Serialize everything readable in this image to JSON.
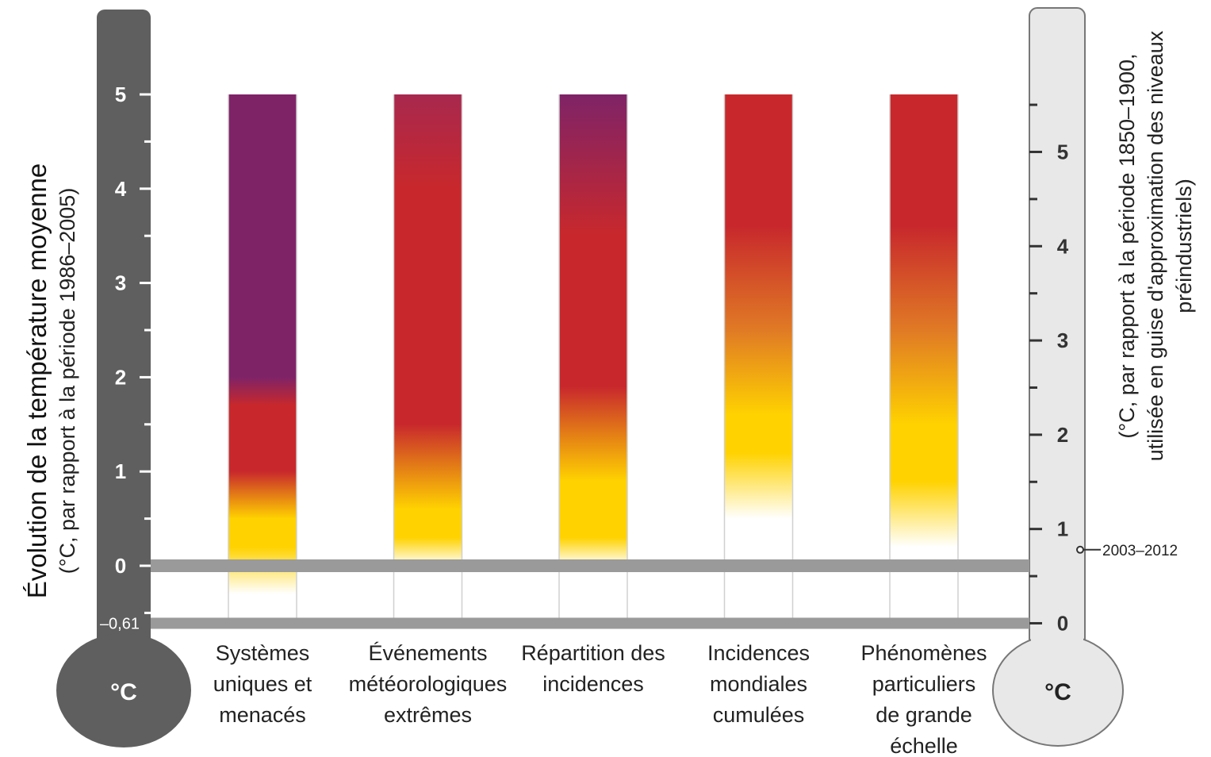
{
  "chart_data": {
    "type": "bar",
    "categories": [
      [
        "Systèmes",
        "uniques et",
        "menacés"
      ],
      [
        "Événements",
        "météorologiques",
        "extrêmes"
      ],
      [
        "Répartition des",
        "incidences"
      ],
      [
        "Incidences",
        "mondiales",
        "cumulées"
      ],
      [
        "Phénomènes",
        "particuliers",
        "de grande",
        "échelle"
      ]
    ],
    "left_axis": {
      "title": "Évolution de la température moyenne",
      "subtitle": "(°C, par rapport à la période 1986–2005)",
      "ticks": [
        "0",
        "1",
        "2",
        "3",
        "4",
        "5"
      ],
      "ylim": [
        -0.61,
        5
      ],
      "baseline_label": "–0,61",
      "unit": "°C"
    },
    "right_axis": {
      "title_lines": [
        "(°C, par rapport à la période 1850–1900,",
        "utilisée en guise d'approximation des niveaux",
        "préindustriels)"
      ],
      "ticks": [
        "0",
        "1",
        "2",
        "3",
        "4",
        "5"
      ],
      "offset": 0.61,
      "unit": "°C",
      "marker_label": "2003–2012",
      "marker_value": 0.78
    },
    "risk_colors": {
      "undetectable": "#ffffff",
      "moderate": "#ffd200",
      "high": "#c8282c",
      "very_high": "#7f2367"
    },
    "bars": [
      {
        "stops": [
          [
            -0.3,
            "#ffffff"
          ],
          [
            0.2,
            "#ffd200"
          ],
          [
            0.5,
            "#ffd200"
          ],
          [
            1.0,
            "#c8282c"
          ],
          [
            1.7,
            "#c8282c"
          ],
          [
            2.0,
            "#7f2367"
          ],
          [
            5.0,
            "#7f2367"
          ]
        ]
      },
      {
        "stops": [
          [
            0.0,
            "#ffffff"
          ],
          [
            0.3,
            "#ffd200"
          ],
          [
            0.6,
            "#ffd200"
          ],
          [
            1.5,
            "#c8282c"
          ],
          [
            4.0,
            "#c8282c"
          ],
          [
            5.0,
            "#a8284e"
          ]
        ]
      },
      {
        "stops": [
          [
            0.0,
            "#ffffff"
          ],
          [
            0.3,
            "#ffd200"
          ],
          [
            0.9,
            "#ffd200"
          ],
          [
            1.9,
            "#c8282c"
          ],
          [
            3.5,
            "#c8282c"
          ],
          [
            5.0,
            "#7f2367"
          ]
        ]
      },
      {
        "stops": [
          [
            0.5,
            "#ffffff"
          ],
          [
            1.2,
            "#ffd200"
          ],
          [
            1.6,
            "#ffd200"
          ],
          [
            2.5,
            "#e07a25"
          ],
          [
            3.6,
            "#c8282c"
          ],
          [
            5.0,
            "#c8282c"
          ]
        ]
      },
      {
        "stops": [
          [
            0.2,
            "#ffffff"
          ],
          [
            0.9,
            "#ffd200"
          ],
          [
            1.5,
            "#ffd200"
          ],
          [
            2.5,
            "#e07a25"
          ],
          [
            3.6,
            "#c8282c"
          ],
          [
            5.0,
            "#c8282c"
          ]
        ]
      }
    ]
  }
}
